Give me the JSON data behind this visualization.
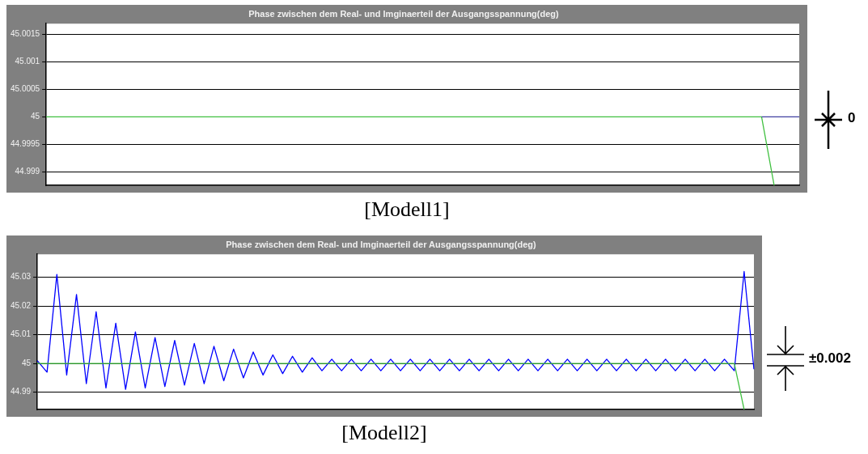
{
  "chart_data": [
    {
      "type": "line",
      "title": "Phase zwischen dem Real- und Imginaerteil der Ausgangsspannung(deg)",
      "categories": [
        null,
        null,
        null,
        null,
        null,
        null,
        null,
        null,
        null,
        null,
        null,
        null,
        null,
        null,
        null,
        null,
        null,
        null,
        null,
        null,
        null,
        null,
        null,
        null,
        null,
        null,
        null,
        null,
        null,
        null,
        null,
        null,
        null,
        null,
        null,
        null,
        null,
        null,
        null,
        null,
        null,
        null,
        null,
        null,
        null,
        null,
        null,
        null,
        null,
        null,
        null,
        null,
        null,
        null,
        null,
        null,
        null,
        null,
        null,
        null,
        null
      ],
      "ylim": [
        44.99875,
        45.0017
      ],
      "yticks": [
        44.999,
        44.9995,
        45,
        45.0005,
        45.001,
        45.0015
      ],
      "tick_labels": "y",
      "grid": "y",
      "marker": "none",
      "line_style": "solid",
      "series": [
        {
          "color": "#40c040",
          "values": [
            45,
            45,
            45,
            45,
            45,
            45,
            45,
            45,
            45,
            45,
            45,
            45,
            45,
            45,
            45,
            45,
            45,
            45,
            45,
            45,
            45,
            45,
            45,
            45,
            45,
            45,
            45,
            45,
            45,
            45,
            45,
            45,
            45,
            45,
            45,
            45,
            45,
            45,
            45,
            45,
            45,
            45,
            45,
            45,
            45,
            45,
            45,
            45,
            45,
            45,
            45,
            45,
            45,
            45,
            45,
            45,
            45,
            45,
            44.99875,
            null,
            null
          ]
        },
        {
          "color": "#4040a0",
          "values": [
            null,
            null,
            null,
            null,
            null,
            null,
            null,
            null,
            null,
            null,
            null,
            null,
            null,
            null,
            null,
            null,
            null,
            null,
            null,
            null,
            null,
            null,
            null,
            null,
            null,
            null,
            null,
            null,
            null,
            null,
            null,
            null,
            null,
            null,
            null,
            null,
            null,
            null,
            null,
            null,
            null,
            null,
            null,
            null,
            null,
            null,
            null,
            null,
            null,
            null,
            null,
            null,
            null,
            null,
            null,
            null,
            null,
            45,
            45,
            45,
            45
          ]
        }
      ],
      "annotations": [
        "[Modell1]",
        "0"
      ]
    },
    {
      "type": "line",
      "title": "Phase zwischen dem Real- und Imginaerteil der Ausgangsspannung(deg)",
      "categories": [
        null,
        null,
        null,
        null,
        null,
        null,
        null,
        null,
        null,
        null,
        null,
        null,
        null,
        null,
        null,
        null,
        null,
        null,
        null,
        null,
        null,
        null,
        null,
        null,
        null,
        null,
        null,
        null,
        null,
        null,
        null,
        null,
        null,
        null,
        null,
        null,
        null,
        null,
        null,
        null,
        null,
        null,
        null,
        null,
        null,
        null,
        null,
        null,
        null,
        null,
        null,
        null,
        null,
        null,
        null,
        null,
        null,
        null,
        null,
        null,
        null,
        null,
        null,
        null,
        null,
        null,
        null,
        null,
        null,
        null,
        null,
        null,
        null,
        null
      ],
      "ylim": [
        44.984,
        45.038
      ],
      "yticks": [
        44.99,
        45,
        45.01,
        45.02,
        45.03
      ],
      "tick_labels": "y",
      "grid": "y",
      "marker": "none",
      "line_style": "solid",
      "series": [
        {
          "color": "#0000ff",
          "values": [
            45.001,
            44.997,
            45.031,
            44.996,
            45.024,
            44.993,
            45.018,
            44.9915,
            45.014,
            44.991,
            45.011,
            44.9915,
            45.009,
            44.992,
            45.008,
            44.9925,
            45.007,
            44.993,
            45.006,
            44.994,
            45.005,
            44.995,
            45.004,
            44.996,
            45.003,
            44.9965,
            45.0025,
            44.997,
            45.002,
            44.9975,
            45.0015,
            44.9975,
            45.0015,
            44.9975,
            45.0015,
            44.9975,
            45.0015,
            44.9975,
            45.0015,
            44.9975,
            45.0015,
            44.9975,
            45.0015,
            44.9975,
            45.0015,
            44.9975,
            45.0015,
            44.9975,
            45.0015,
            44.9975,
            45.0015,
            44.9975,
            45.0015,
            44.9975,
            45.0015,
            44.9975,
            45.0015,
            44.9975,
            45.0015,
            44.9975,
            45.0015,
            44.9975,
            45.0015,
            44.9975,
            45.0015,
            44.9975,
            45.0015,
            44.9975,
            45.0015,
            44.9975,
            45.0015,
            44.9975,
            45.032,
            44.998
          ]
        },
        {
          "color": "#40c040",
          "values": [
            45,
            45,
            45,
            45,
            45,
            45,
            45,
            45,
            45,
            45,
            45,
            45,
            45,
            45,
            45,
            45,
            45,
            45,
            45,
            45,
            45,
            45,
            45,
            45,
            45,
            45,
            45,
            45,
            45,
            45,
            45,
            45,
            45,
            45,
            45,
            45,
            45,
            45,
            45,
            45,
            45,
            45,
            45,
            45,
            45,
            45,
            45,
            45,
            45,
            45,
            45,
            45,
            45,
            45,
            45,
            45,
            45,
            45,
            45,
            45,
            45,
            45,
            45,
            45,
            45,
            45,
            45,
            45,
            45,
            45,
            45,
            45,
            44.984,
            null
          ]
        }
      ],
      "annotations": [
        "[Modell2]",
        "±0.002"
      ]
    }
  ]
}
